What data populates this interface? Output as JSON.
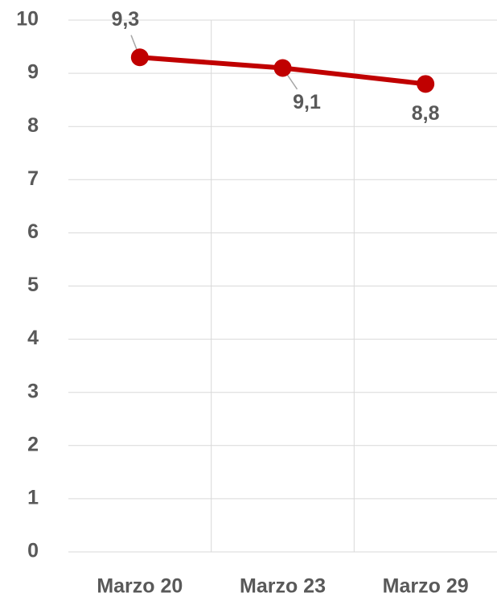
{
  "chart_data": {
    "type": "line",
    "categories": [
      "Marzo 20",
      "Marzo 23",
      "Marzo 29"
    ],
    "values": [
      9.3,
      9.1,
      8.8
    ],
    "value_labels": [
      "9,3",
      "9,1",
      "8,8"
    ],
    "color": "#c00000",
    "ylim": [
      0,
      10
    ],
    "yticks": [
      0,
      1,
      2,
      3,
      4,
      5,
      6,
      7,
      8,
      9,
      10
    ],
    "grid": true
  }
}
